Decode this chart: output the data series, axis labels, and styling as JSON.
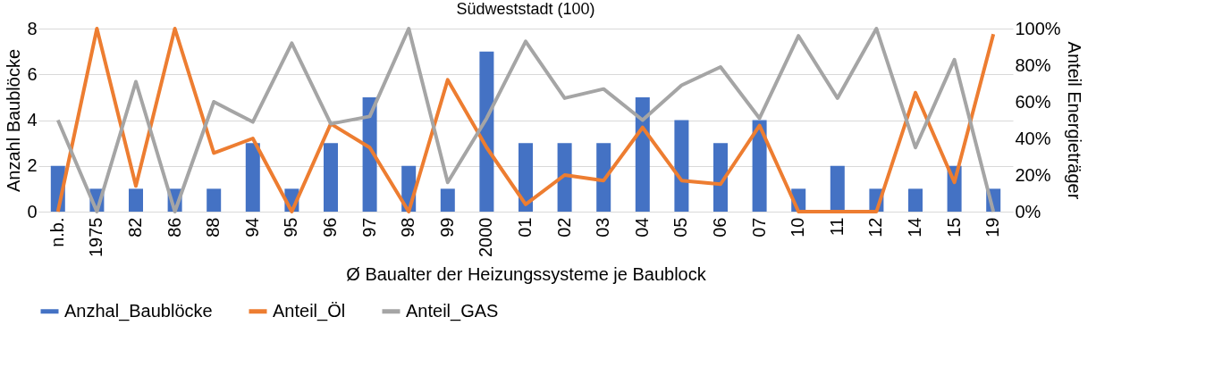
{
  "chart_data": {
    "type": "bar",
    "title": "Südweststadt (100)",
    "xlabel": "Ø Baualter der Heizungssysteme je Baublock",
    "ylabel": "Anzahl Baublöcke",
    "y2label": "Anteil Energieträger",
    "categories": [
      "n.b.",
      "1975",
      "82",
      "86",
      "88",
      "94",
      "95",
      "96",
      "97",
      "98",
      "99",
      "2000",
      "01",
      "02",
      "03",
      "04",
      "05",
      "06",
      "07",
      "10",
      "11",
      "12",
      "14",
      "15",
      "19"
    ],
    "series": [
      {
        "name": "Anzhal_Baublöcke",
        "color": "#4472c4",
        "values": [
          2,
          1,
          1,
          1,
          1,
          3,
          1,
          3,
          5,
          2,
          1,
          7,
          3,
          3,
          3,
          5,
          4,
          3,
          4,
          1,
          2,
          1,
          1,
          2,
          1
        ]
      },
      {
        "name": "Anteil_Öl",
        "type": "line",
        "axis": "y2",
        "color": "#ed7d31",
        "values": [
          0,
          100,
          14,
          100,
          32,
          40,
          0,
          48,
          35,
          0,
          72,
          35,
          4,
          20,
          17,
          46,
          17,
          15,
          47,
          0,
          0,
          0,
          65,
          16,
          97
        ]
      },
      {
        "name": "Anteil_GAS",
        "type": "line",
        "axis": "y2",
        "color": "#a5a5a5",
        "values": [
          50,
          0,
          71,
          0,
          60,
          49,
          92,
          48,
          52,
          100,
          16,
          51,
          93,
          62,
          67,
          50,
          69,
          79,
          51,
          96,
          62,
          100,
          35,
          83,
          0
        ]
      }
    ],
    "ylim": [
      0,
      8
    ],
    "yticks": [
      0,
      2,
      4,
      6,
      8
    ],
    "y2lim": [
      0,
      100
    ],
    "y2ticks": [
      {
        "value": 0,
        "label": "0%"
      },
      {
        "value": 20,
        "label": "20%"
      },
      {
        "value": 40,
        "label": "40%"
      },
      {
        "value": 60,
        "label": "60%"
      },
      {
        "value": 80,
        "label": "80%"
      },
      {
        "value": 100,
        "label": "100%"
      }
    ],
    "grid": "y",
    "legend": "bottom",
    "marker": "none",
    "line_style": "solid"
  }
}
